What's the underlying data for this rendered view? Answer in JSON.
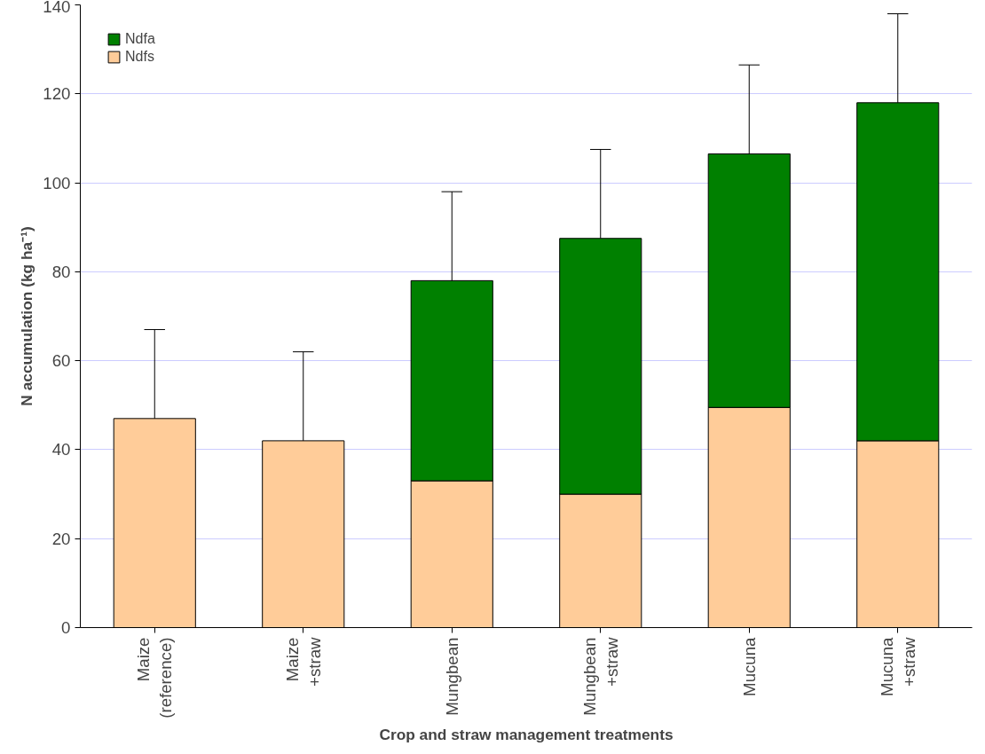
{
  "chart_data": {
    "type": "bar",
    "stacked": true,
    "categories": [
      "Maize\n(reference)",
      "Maize\n+straw",
      "Mungbean",
      "Mungbean\n+straw",
      "Mucuna",
      "Mucuna\n+straw"
    ],
    "series": [
      {
        "name": "Ndfs",
        "color": "#ffcc99",
        "values": [
          47,
          42,
          33,
          30,
          49.5,
          42
        ],
        "errors": [
          [
            47,
            67
          ],
          [
            42,
            62
          ],
          null,
          null,
          null,
          null
        ]
      },
      {
        "name": "Ndfa",
        "color": "#008000",
        "values": [
          null,
          null,
          45,
          57.5,
          57,
          76
        ],
        "errors": [
          null,
          null,
          [
            78,
            98
          ],
          [
            87.5,
            107.5
          ],
          [
            106.5,
            126.5
          ],
          [
            118,
            138
          ]
        ]
      }
    ],
    "xlabel": "Crop and straw management treatments",
    "ylabel": "N accumulation (kg ha⁻¹)",
    "ylim": [
      0,
      140
    ],
    "yticks": [
      0,
      20,
      40,
      60,
      80,
      100,
      120,
      140
    ],
    "grid": "y",
    "legend": "top left"
  }
}
